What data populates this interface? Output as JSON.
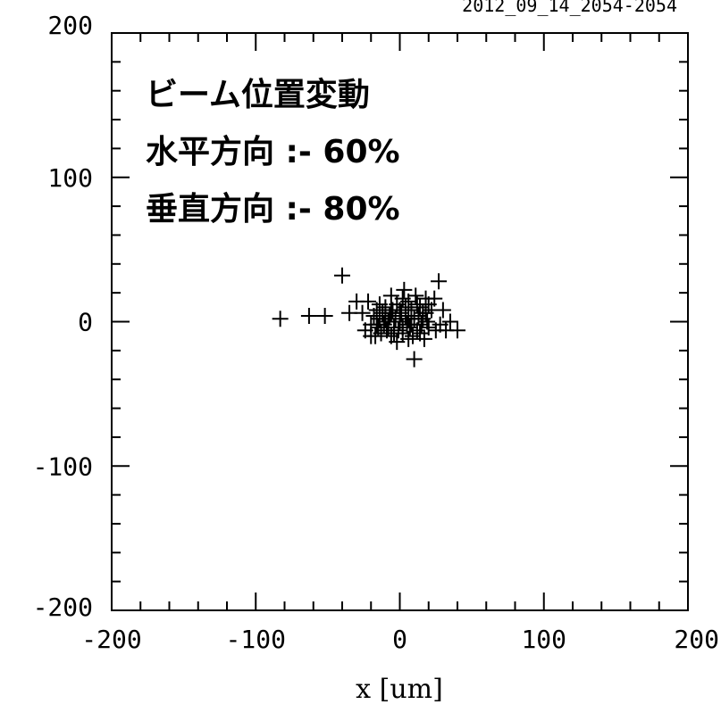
{
  "chart_data": {
    "type": "scatter",
    "title": "2012_09_14_2054-2054",
    "xlabel": "x [um]",
    "ylabel": "",
    "xlim": [
      -200,
      200
    ],
    "ylim": [
      -200,
      200
    ],
    "x_ticks": [
      -200,
      -100,
      0,
      100,
      200
    ],
    "y_ticks": [
      -200,
      -100,
      0,
      100,
      200
    ],
    "x_tick_labels": [
      "-200",
      "-100",
      "0",
      "100",
      "200"
    ],
    "y_tick_labels": [
      "-200",
      "-100",
      "0",
      "100",
      "200"
    ],
    "minor_step": 20,
    "grid": false,
    "annotations": [
      "ビーム位置変動",
      "水平方向 :- 60%",
      "垂直方向 :- 80%"
    ],
    "marker": "plus",
    "series": [
      {
        "points": [
          [
            -83,
            2
          ],
          [
            -63,
            4
          ],
          [
            -52,
            4
          ],
          [
            -40,
            32
          ],
          [
            -35,
            6
          ],
          [
            -30,
            14
          ],
          [
            -26,
            6
          ],
          [
            -24,
            -6
          ],
          [
            -22,
            14
          ],
          [
            -20,
            -2
          ],
          [
            -18,
            4
          ],
          [
            -17,
            -10
          ],
          [
            -16,
            8
          ],
          [
            -15,
            -4
          ],
          [
            -14,
            2
          ],
          [
            -13,
            -8
          ],
          [
            -12,
            6
          ],
          [
            -11,
            -2
          ],
          [
            -10,
            10
          ],
          [
            -9,
            -6
          ],
          [
            -8,
            0
          ],
          [
            -7,
            4
          ],
          [
            -6,
            -10
          ],
          [
            -5,
            8
          ],
          [
            -4,
            -4
          ],
          [
            -3,
            2
          ],
          [
            -2,
            12
          ],
          [
            -1,
            -6
          ],
          [
            0,
            0
          ],
          [
            1,
            6
          ],
          [
            2,
            -8
          ],
          [
            3,
            22
          ],
          [
            4,
            4
          ],
          [
            5,
            -2
          ],
          [
            6,
            14
          ],
          [
            7,
            -4
          ],
          [
            8,
            8
          ],
          [
            9,
            -10
          ],
          [
            10,
            2
          ],
          [
            11,
            18
          ],
          [
            12,
            -6
          ],
          [
            13,
            4
          ],
          [
            14,
            10
          ],
          [
            15,
            -2
          ],
          [
            16,
            6
          ],
          [
            17,
            -12
          ],
          [
            18,
            16
          ],
          [
            19,
            0
          ],
          [
            20,
            -4
          ],
          [
            22,
            8
          ],
          [
            24,
            16
          ],
          [
            25,
            -6
          ],
          [
            27,
            28
          ],
          [
            28,
            -2
          ],
          [
            30,
            8
          ],
          [
            32,
            -6
          ],
          [
            35,
            0
          ],
          [
            40,
            -6
          ],
          [
            10,
            -26
          ],
          [
            -6,
            18
          ],
          [
            -14,
            12
          ],
          [
            2,
            16
          ],
          [
            12,
            12
          ],
          [
            -20,
            -10
          ],
          [
            6,
            -12
          ],
          [
            -2,
            -14
          ],
          [
            16,
            2
          ],
          [
            -8,
            -4
          ],
          [
            4,
            10
          ],
          [
            8,
            -2
          ],
          [
            0,
            8
          ],
          [
            -4,
            -8
          ],
          [
            14,
            -8
          ],
          [
            20,
            12
          ],
          [
            -10,
            2
          ],
          [
            6,
            2
          ],
          [
            -16,
            -2
          ],
          [
            2,
            -4
          ],
          [
            18,
            6
          ],
          [
            -6,
            6
          ]
        ]
      }
    ]
  }
}
